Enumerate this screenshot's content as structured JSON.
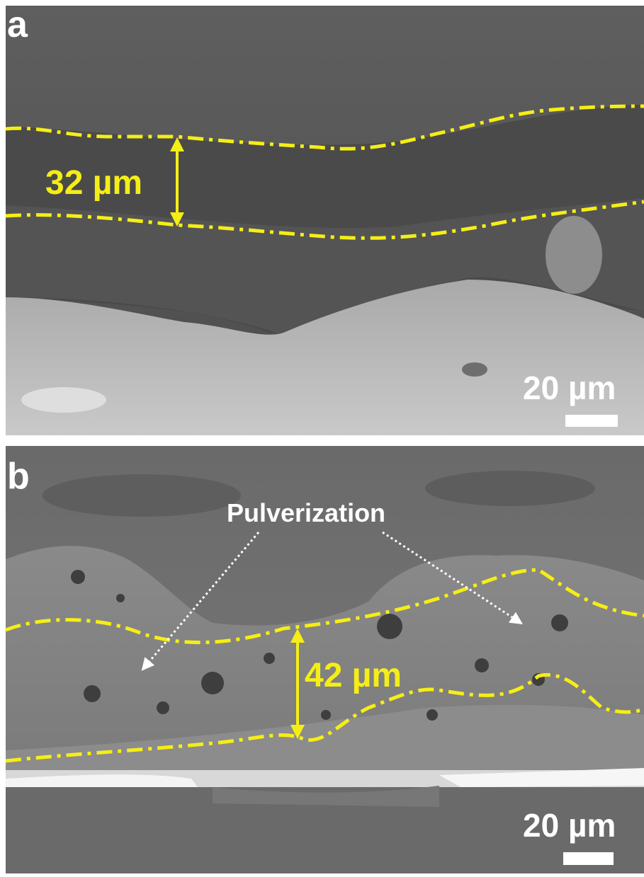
{
  "panels": [
    {
      "label": "a",
      "thickness": "32 µm",
      "scale_bar": "20 µm"
    },
    {
      "label": "b",
      "annotation": "Pulverization",
      "thickness": "42 µm",
      "scale_bar": "20 µm"
    }
  ]
}
